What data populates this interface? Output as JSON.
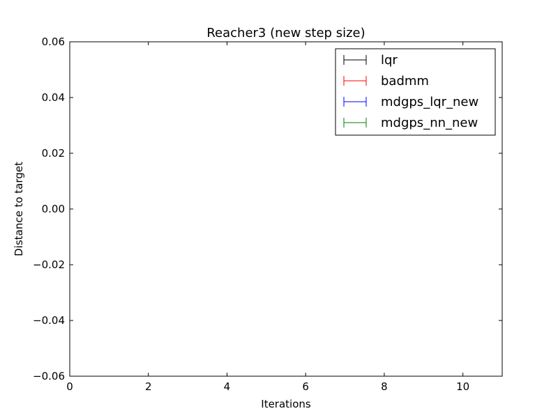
{
  "chart_data": {
    "type": "line",
    "title": "Reacher3 (new step size)",
    "xlabel": "Iterations",
    "ylabel": "Distance to target",
    "xlim": [
      0,
      11
    ],
    "ylim": [
      -0.06,
      0.06
    ],
    "x_ticks": [
      0,
      2,
      4,
      6,
      8,
      10
    ],
    "x_tick_labels": [
      "0",
      "2",
      "4",
      "6",
      "8",
      "10"
    ],
    "y_ticks": [
      -0.06,
      -0.04,
      -0.02,
      0.0,
      0.02,
      0.04,
      0.06
    ],
    "y_tick_labels": [
      "−0.06",
      "−0.04",
      "−0.02",
      "0.00",
      "0.02",
      "0.04",
      "0.06"
    ],
    "grid": false,
    "legend_position": "top-right",
    "series": [
      {
        "name": "lqr",
        "color": "#000000",
        "style": "errorbar",
        "x": [],
        "y": []
      },
      {
        "name": "badmm",
        "color": "#ff0000",
        "style": "errorbar",
        "x": [],
        "y": []
      },
      {
        "name": "mdgps_lqr_new",
        "color": "#0000ff",
        "style": "errorbar",
        "x": [],
        "y": []
      },
      {
        "name": "mdgps_nn_new",
        "color": "#008000",
        "style": "errorbar",
        "x": [],
        "y": []
      }
    ]
  }
}
